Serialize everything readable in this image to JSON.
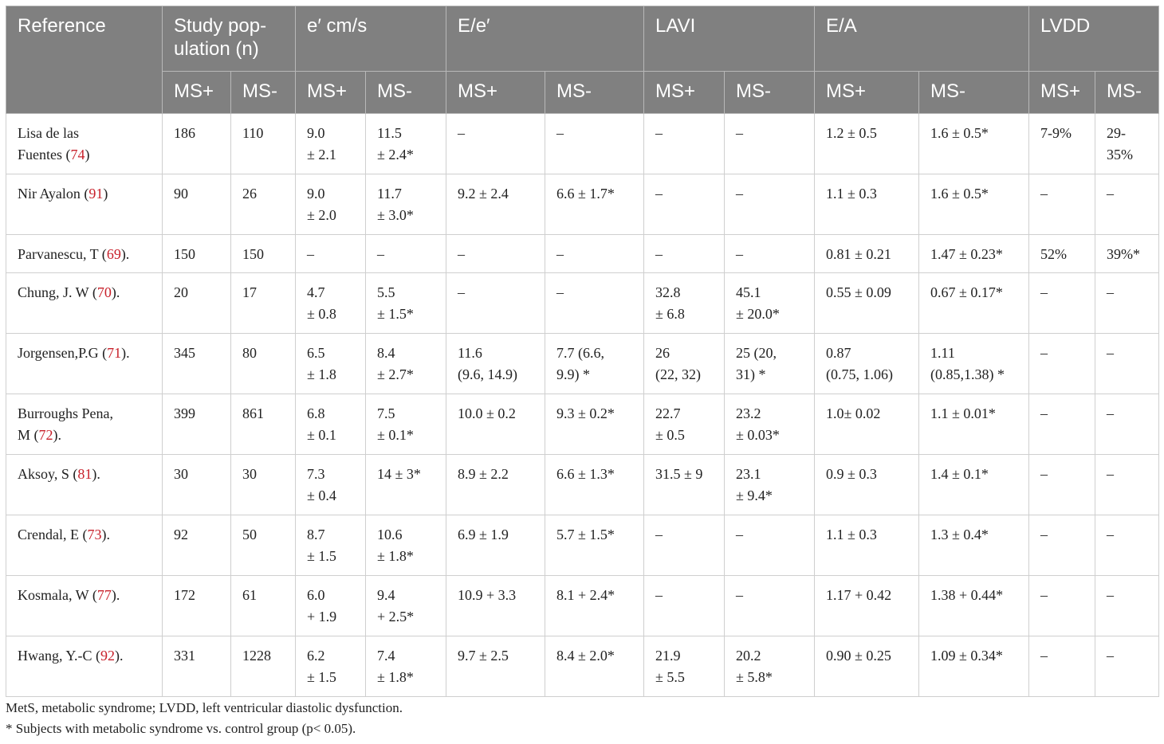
{
  "table": {
    "header": [
      {
        "text": "Reference"
      },
      {
        "text": "Study pop-\nulation (n)"
      },
      {
        "text": "e′ cm/s"
      },
      {
        "text": "E/e′"
      },
      {
        "text": "LAVI"
      },
      {
        "text": "E/A"
      },
      {
        "text": "LVDD"
      }
    ],
    "subheader": [
      "MS+",
      "MS-",
      "MS+",
      "MS-",
      "MS+",
      "MS-",
      "MS+",
      "MS-",
      "MS+",
      "MS-",
      "MS+",
      "MS-"
    ],
    "rows": [
      {
        "reference": {
          "text": "Lisa de las\nFuentes (",
          "ref": "74",
          "after": ")"
        },
        "cells": [
          "186",
          "110",
          "9.0\n± 2.1",
          "11.5\n± 2.4*",
          "–",
          "–",
          "–",
          "–",
          "1.2 ± 0.5",
          "1.6 ± 0.5*",
          "7-9%",
          "29-\n35%"
        ]
      },
      {
        "reference": {
          "text": "Nir Ayalon (",
          "ref": "91",
          "after": ")"
        },
        "cells": [
          "90",
          "26",
          "9.0\n± 2.0",
          "11.7\n± 3.0*",
          "9.2 ± 2.4",
          "6.6 ± 1.7*",
          "–",
          "–",
          "1.1 ± 0.3",
          "1.6 ± 0.5*",
          "–",
          "–"
        ]
      },
      {
        "reference": {
          "text": "Parvanescu, T (",
          "ref": "69",
          "after": ")."
        },
        "cells": [
          "150",
          "150",
          "–",
          "–",
          "–",
          "–",
          "–",
          "–",
          "0.81 ± 0.21",
          "1.47 ± 0.23*",
          "52%",
          "39%*"
        ]
      },
      {
        "reference": {
          "text": "Chung, J. W (",
          "ref": "70",
          "after": ")."
        },
        "cells": [
          "20",
          "17",
          "4.7\n± 0.8",
          "5.5\n± 1.5*",
          "–",
          "–",
          "32.8\n± 6.8",
          "45.1\n± 20.0*",
          "0.55 ± 0.09",
          "0.67 ± 0.17*",
          "–",
          "–"
        ]
      },
      {
        "reference": {
          "text": "Jorgensen,P.G (",
          "ref": "71",
          "after": ")."
        },
        "cells": [
          "345",
          "80",
          "6.5\n± 1.8",
          "8.4\n± 2.7*",
          "11.6\n(9.6, 14.9)",
          "7.7 (6.6,\n9.9) *",
          "26\n(22, 32)",
          "25 (20,\n31) *",
          "0.87\n(0.75, 1.06)",
          "1.11\n(0.85,1.38) *",
          "–",
          "–"
        ]
      },
      {
        "reference": {
          "text": "Burroughs Pena,\nM (",
          "ref": "72",
          "after": ")."
        },
        "cells": [
          "399",
          "861",
          "6.8\n± 0.1",
          "7.5\n± 0.1*",
          "10.0 ± 0.2",
          "9.3 ± 0.2*",
          "22.7\n± 0.5",
          "23.2\n± 0.03*",
          "1.0± 0.02",
          "1.1 ± 0.01*",
          "–",
          "–"
        ]
      },
      {
        "reference": {
          "text": "Aksoy, S (",
          "ref": "81",
          "after": ")."
        },
        "cells": [
          "30",
          "30",
          "7.3\n± 0.4",
          "14 ± 3*",
          "8.9 ± 2.2",
          "6.6 ± 1.3*",
          "31.5 ± 9",
          "23.1\n± 9.4*",
          "0.9 ± 0.3",
          "1.4 ± 0.1*",
          "–",
          "–"
        ]
      },
      {
        "reference": {
          "text": "Crendal, E (",
          "ref": "73",
          "after": ")."
        },
        "cells": [
          "92",
          "50",
          "8.7\n± 1.5",
          "10.6\n± 1.8*",
          "6.9 ± 1.9",
          "5.7 ± 1.5*",
          "–",
          "–",
          "1.1 ± 0.3",
          "1.3 ± 0.4*",
          "–",
          "–"
        ]
      },
      {
        "reference": {
          "text": "Kosmala, W (",
          "ref": "77",
          "after": ")."
        },
        "cells": [
          "172",
          "61",
          "6.0\n+ 1.9",
          "9.4\n+ 2.5*",
          "10.9 + 3.3",
          "8.1 + 2.4*",
          "–",
          "–",
          "1.17 + 0.42",
          "1.38 + 0.44*",
          "–",
          "–"
        ]
      },
      {
        "reference": {
          "text": "Hwang, Y.-C (",
          "ref": "92",
          "after": ")."
        },
        "cells": [
          "331",
          "1228",
          "6.2\n± 1.5",
          "7.4\n± 1.8*",
          "9.7 ± 2.5",
          "8.4 ± 2.0*",
          "21.9\n± 5.5",
          "20.2\n± 5.8*",
          "0.90 ± 0.25",
          "1.09 ± 0.34*",
          "–",
          "–"
        ]
      }
    ]
  },
  "footnotes": [
    "MetS, metabolic syndrome; LVDD, left ventricular diastolic dysfunction.",
    "* Subjects with metabolic syndrome vs. control group (p< 0.05)."
  ]
}
